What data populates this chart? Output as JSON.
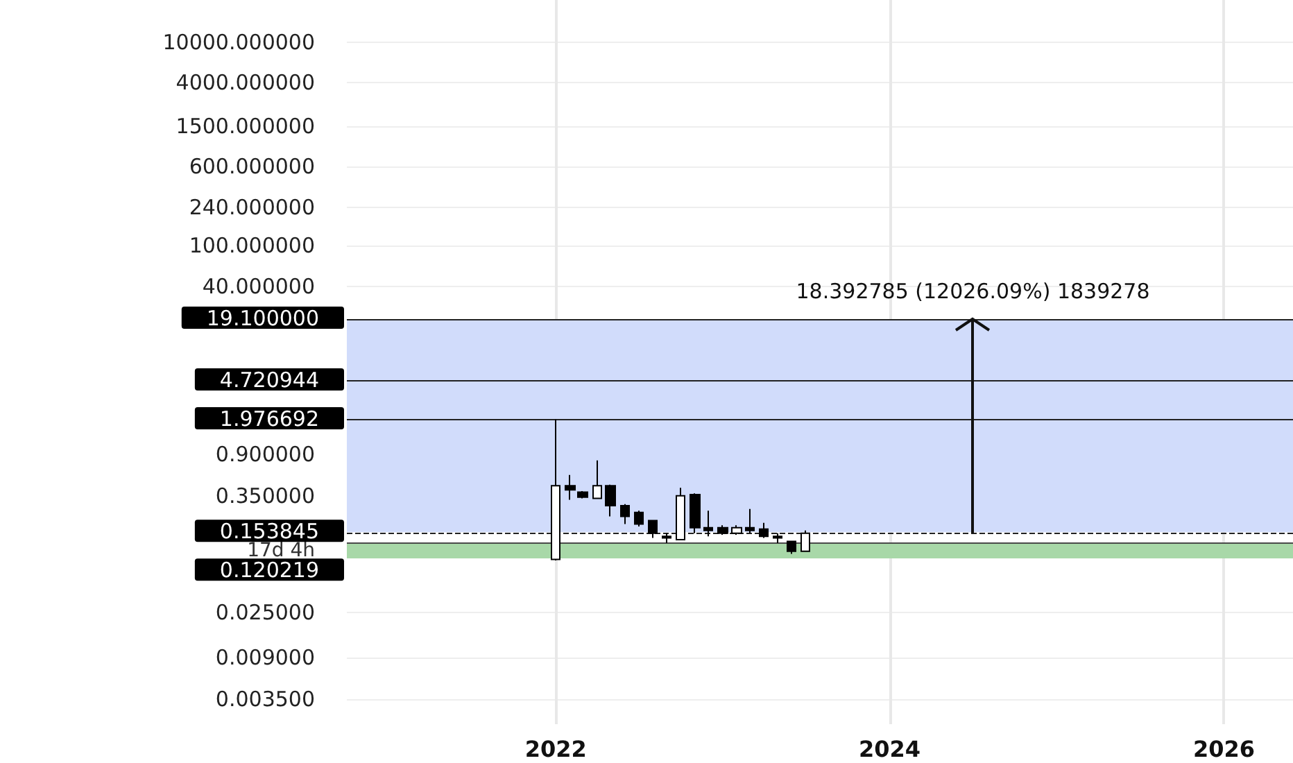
{
  "chart_data": {
    "type": "candlestick",
    "x": [
      "2022-01",
      "2022-02",
      "2022-03",
      "2022-04",
      "2022-05",
      "2022-06",
      "2022-07",
      "2022-08",
      "2022-09",
      "2022-10",
      "2022-11",
      "2022-12",
      "2023-01",
      "2023-02",
      "2023-03",
      "2023-04",
      "2023-05",
      "2023-06",
      "2023-07"
    ],
    "ohlc": [
      [
        0.083,
        1.976692,
        0.081,
        0.44
      ],
      [
        0.44,
        0.56,
        0.32,
        0.4
      ],
      [
        0.38,
        0.39,
        0.33,
        0.34
      ],
      [
        0.33,
        0.78,
        0.33,
        0.44
      ],
      [
        0.44,
        0.45,
        0.22,
        0.28
      ],
      [
        0.28,
        0.29,
        0.185,
        0.22
      ],
      [
        0.24,
        0.25,
        0.175,
        0.185
      ],
      [
        0.2,
        0.2,
        0.135,
        0.15
      ],
      [
        0.14,
        0.15,
        0.12,
        0.135
      ],
      [
        0.13,
        0.42,
        0.13,
        0.35
      ],
      [
        0.36,
        0.37,
        0.15,
        0.17
      ],
      [
        0.17,
        0.25,
        0.14,
        0.16
      ],
      [
        0.17,
        0.18,
        0.145,
        0.15
      ],
      [
        0.15,
        0.18,
        0.145,
        0.17
      ],
      [
        0.17,
        0.26,
        0.15,
        0.16
      ],
      [
        0.165,
        0.19,
        0.135,
        0.14
      ],
      [
        0.14,
        0.15,
        0.12,
        0.135
      ],
      [
        0.125,
        0.125,
        0.094,
        0.1
      ],
      [
        0.1,
        0.16,
        0.1,
        0.15
      ]
    ],
    "colors": [
      "#ffffff",
      "#000000",
      "#000000",
      "#ffffff",
      "#000000",
      "#000000",
      "#000000",
      "#000000",
      "#000000",
      "#ffffff",
      "#000000",
      "#000000",
      "#000000",
      "#ffffff",
      "#000000",
      "#000000",
      "#000000",
      "#000000",
      "#ffffff"
    ],
    "log": "y",
    "grid": true,
    "xlim": [
      "2020-10",
      "2026-06"
    ],
    "xticks": [
      "2022",
      "2024",
      "2026"
    ],
    "ylim": [
      0.002,
      26000
    ],
    "yticks": [
      {
        "value": 10000,
        "label": "10000.000000"
      },
      {
        "value": 4000,
        "label": "4000.000000"
      },
      {
        "value": 1500,
        "label": "1500.000000"
      },
      {
        "value": 600,
        "label": "600.000000"
      },
      {
        "value": 240,
        "label": "240.000000"
      },
      {
        "value": 100,
        "label": "100.000000"
      },
      {
        "value": 40,
        "label": "40.000000"
      },
      {
        "value": 0.9,
        "label": "0.900000"
      },
      {
        "value": 0.35,
        "label": "0.350000"
      },
      {
        "value": 0.025,
        "label": "0.025000"
      },
      {
        "value": 0.009,
        "label": "0.009000"
      },
      {
        "value": 0.0035,
        "label": "0.003500"
      }
    ],
    "ref_lines": [
      {
        "axis": "y",
        "value": 19.1,
        "label": "19.100000",
        "color": "#222222"
      },
      {
        "axis": "y",
        "value": 4.720944,
        "label": "4.720944",
        "color": "#222222"
      },
      {
        "axis": "y",
        "value": 1.976692,
        "label": "1.976692",
        "color": "#222222"
      },
      {
        "axis": "y",
        "value": 0.153845,
        "label": "0.153845",
        "color": "#222222",
        "line_style": "dashed"
      },
      {
        "axis": "y",
        "value": 0.120219,
        "label": "0.120219",
        "color": "#4a4a4a"
      }
    ],
    "bands": [
      {
        "axis": "y",
        "from": 0.153845,
        "to": 19.1,
        "color": "#d1dcfb"
      },
      {
        "axis": "y",
        "from": 0.085,
        "to": 0.120219,
        "color": "#a8d8a8"
      }
    ],
    "annotations": [
      {
        "text": "18.392785 (12026.09%) 1839278",
        "x": "2024-07",
        "y": 19.1
      },
      "17d 4h"
    ]
  }
}
